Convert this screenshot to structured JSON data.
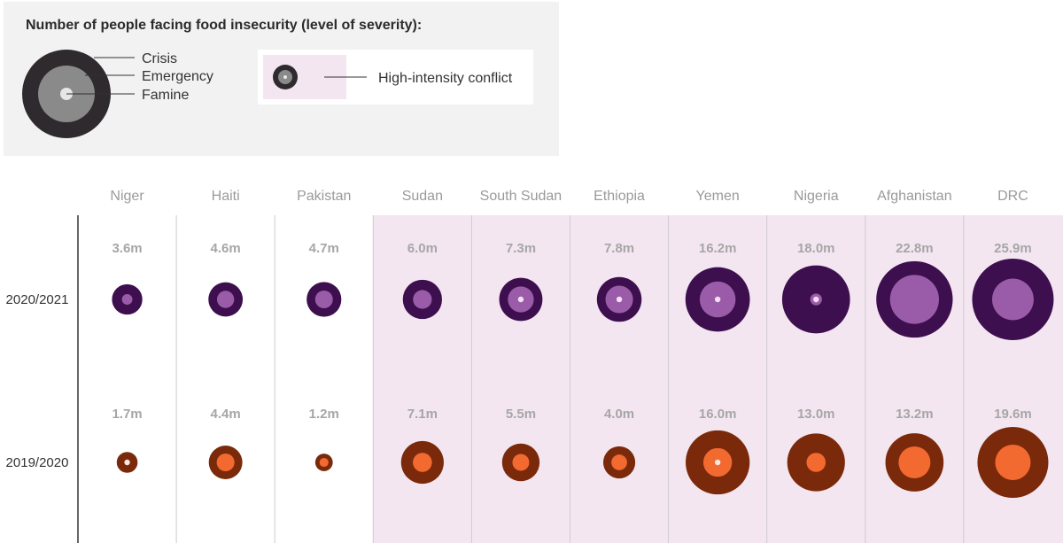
{
  "legend": {
    "title": "Number of people facing food insecurity (level of severity):",
    "crisis_label": "Crisis",
    "emergency_label": "Emergency",
    "famine_label": "Famine",
    "conflict_label": "High-intensity conflict"
  },
  "colors": {
    "crisis_2021": "#3d0f4e",
    "emergency_2021": "#9a5ca8",
    "famine_2021": "#f3e0f3",
    "crisis_2020": "#7a2a0a",
    "emergency_2020": "#f26a30",
    "famine_2020": "#fbe8de",
    "conflict_band": "#f4e6f1",
    "legend_crisis": "#2e2a2d",
    "legend_emergency": "#8a8a8a",
    "legend_famine": "#e6e6e6"
  },
  "chart_data": {
    "type": "bubble",
    "categories": [
      "Niger",
      "Haiti",
      "Pakistan",
      "Sudan",
      "South Sudan",
      "Ethiopia",
      "Yemen",
      "Nigeria",
      "Afghanistan",
      "DRC"
    ],
    "high_intensity_conflict": [
      false,
      false,
      false,
      true,
      true,
      true,
      true,
      true,
      true,
      true
    ],
    "rows": [
      {
        "year": "2020/2021",
        "totals": [
          3.6,
          4.6,
          4.7,
          6.0,
          7.3,
          7.8,
          16.2,
          18.0,
          22.8,
          25.9
        ],
        "labels": [
          "3.6m",
          "4.6m",
          "4.7m",
          "6.0m",
          "7.3m",
          "7.8m",
          "16.2m",
          "18.0m",
          "22.8m",
          "25.9m"
        ],
        "emergency_share": [
          0.12,
          0.25,
          0.26,
          0.23,
          0.36,
          0.38,
          0.31,
          0.03,
          0.41,
          0.26
        ],
        "famine_present": [
          false,
          false,
          false,
          false,
          true,
          true,
          true,
          true,
          false,
          false
        ]
      },
      {
        "year": "2019/2020",
        "totals": [
          1.7,
          4.4,
          1.2,
          7.1,
          5.5,
          4.0,
          16.0,
          13.0,
          13.2,
          19.6
        ],
        "labels": [
          "1.7m",
          "4.4m",
          "1.2m",
          "7.1m",
          "5.5m",
          "4.0m",
          "16.0m",
          "13.0m",
          "13.2m",
          "19.6m"
        ],
        "emergency_share": [
          0.06,
          0.28,
          0.26,
          0.2,
          0.2,
          0.24,
          0.2,
          0.11,
          0.3,
          0.25
        ],
        "famine_present": [
          true,
          false,
          false,
          false,
          false,
          false,
          true,
          false,
          false,
          false
        ]
      }
    ]
  }
}
